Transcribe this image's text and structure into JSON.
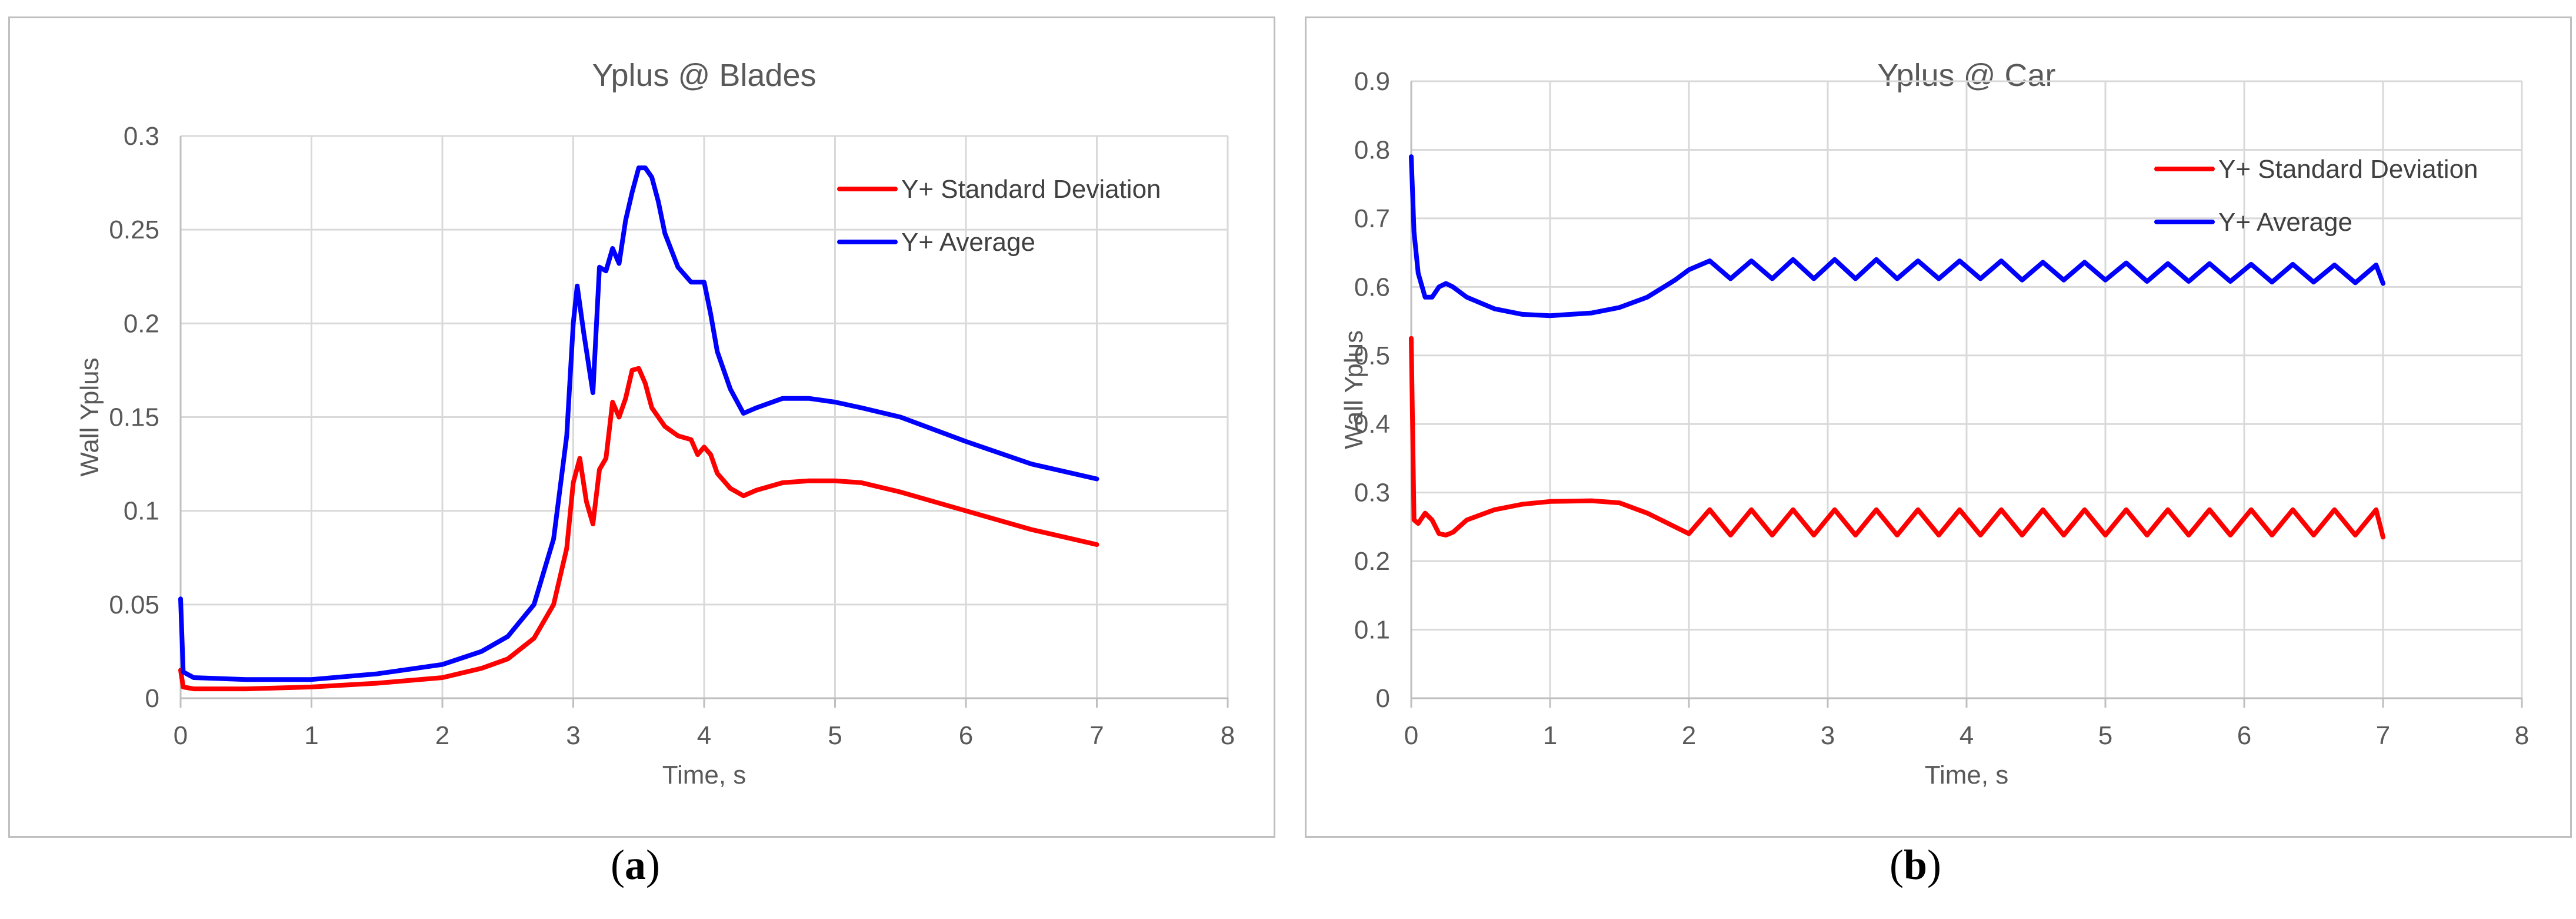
{
  "captions": {
    "a": "a",
    "b": "b"
  },
  "colors": {
    "std": "#ff0000",
    "avg": "#0000ff",
    "grid": "#d9d9d9",
    "axis": "#bfbfbf",
    "text": "#595959"
  },
  "chart_data": [
    {
      "id": "a",
      "type": "line",
      "title": "Yplus @ Blades",
      "xlabel": "Time, s",
      "ylabel": "Wall Yplus",
      "xlim": [
        0,
        8
      ],
      "ylim": [
        0,
        0.3
      ],
      "xticks": [
        0,
        1,
        2,
        3,
        4,
        5,
        6,
        7,
        8
      ],
      "xtick_labels": [
        "0",
        "1",
        "2",
        "3",
        "4",
        "5",
        "6",
        "7",
        "8"
      ],
      "yticks": [
        0,
        0.05,
        0.1,
        0.15,
        0.2,
        0.25,
        0.3
      ],
      "ytick_labels": [
        "0",
        "0.05",
        "0.1",
        "0.15",
        "0.2",
        "0.25",
        "0.3"
      ],
      "legend_position": "top-right",
      "series": [
        {
          "name": "Y+ Standard Deviation",
          "color": "#ff0000",
          "x": [
            0,
            0.02,
            0.1,
            0.5,
            1.0,
            1.5,
            2.0,
            2.3,
            2.5,
            2.7,
            2.85,
            2.95,
            3.0,
            3.05,
            3.1,
            3.15,
            3.2,
            3.25,
            3.3,
            3.35,
            3.4,
            3.45,
            3.5,
            3.55,
            3.6,
            3.65,
            3.7,
            3.8,
            3.9,
            3.95,
            4.0,
            4.05,
            4.1,
            4.2,
            4.3,
            4.4,
            4.6,
            4.8,
            5.0,
            5.2,
            5.5,
            6.0,
            6.5,
            7.0
          ],
          "values": [
            0.015,
            0.006,
            0.005,
            0.005,
            0.006,
            0.008,
            0.011,
            0.016,
            0.021,
            0.032,
            0.05,
            0.08,
            0.115,
            0.128,
            0.105,
            0.093,
            0.122,
            0.128,
            0.158,
            0.15,
            0.16,
            0.175,
            0.176,
            0.168,
            0.155,
            0.15,
            0.145,
            0.14,
            0.138,
            0.13,
            0.134,
            0.13,
            0.12,
            0.112,
            0.108,
            0.111,
            0.115,
            0.116,
            0.116,
            0.115,
            0.11,
            0.1,
            0.09,
            0.082
          ]
        },
        {
          "name": "Y+ Average",
          "color": "#0000ff",
          "x": [
            0,
            0.02,
            0.1,
            0.5,
            1.0,
            1.5,
            2.0,
            2.3,
            2.5,
            2.7,
            2.85,
            2.95,
            3.0,
            3.03,
            3.08,
            3.15,
            3.2,
            3.25,
            3.3,
            3.35,
            3.4,
            3.45,
            3.5,
            3.55,
            3.6,
            3.65,
            3.7,
            3.8,
            3.9,
            3.95,
            4.0,
            4.05,
            4.1,
            4.2,
            4.3,
            4.4,
            4.6,
            4.8,
            5.0,
            5.2,
            5.5,
            6.0,
            6.5,
            7.0
          ],
          "values": [
            0.053,
            0.014,
            0.011,
            0.01,
            0.01,
            0.013,
            0.018,
            0.025,
            0.033,
            0.05,
            0.085,
            0.14,
            0.2,
            0.22,
            0.195,
            0.163,
            0.23,
            0.228,
            0.24,
            0.232,
            0.255,
            0.27,
            0.283,
            0.283,
            0.278,
            0.265,
            0.248,
            0.23,
            0.222,
            0.222,
            0.222,
            0.205,
            0.185,
            0.165,
            0.152,
            0.155,
            0.16,
            0.16,
            0.158,
            0.155,
            0.15,
            0.137,
            0.125,
            0.117
          ]
        }
      ]
    },
    {
      "id": "b",
      "type": "line",
      "title": "Yplus @ Car",
      "xlabel": "Time, s",
      "ylabel": "Wall Yplus",
      "xlim": [
        0,
        8
      ],
      "ylim": [
        0,
        0.9
      ],
      "xticks": [
        0,
        1,
        2,
        3,
        4,
        5,
        6,
        7,
        8
      ],
      "xtick_labels": [
        "0",
        "1",
        "2",
        "3",
        "4",
        "5",
        "6",
        "7",
        "8"
      ],
      "yticks": [
        0,
        0.1,
        0.2,
        0.3,
        0.4,
        0.5,
        0.6,
        0.7,
        0.8,
        0.9
      ],
      "ytick_labels": [
        "0",
        "0.1",
        "0.2",
        "0.3",
        "0.4",
        "0.5",
        "0.6",
        "0.7",
        "0.8",
        "0.9"
      ],
      "legend_position": "top-right",
      "series": [
        {
          "name": "Y+ Standard Deviation",
          "color": "#ff0000",
          "x": [
            0,
            0.02,
            0.05,
            0.1,
            0.15,
            0.2,
            0.25,
            0.3,
            0.4,
            0.6,
            0.8,
            1.0,
            1.3,
            1.5,
            1.7,
            1.9,
            2.0,
            2.15,
            2.3,
            2.45,
            2.6,
            2.75,
            2.9,
            3.05,
            3.2,
            3.35,
            3.5,
            3.65,
            3.8,
            3.95,
            4.1,
            4.25,
            4.4,
            4.55,
            4.7,
            4.85,
            5.0,
            5.15,
            5.3,
            5.45,
            5.6,
            5.75,
            5.9,
            6.05,
            6.2,
            6.35,
            6.5,
            6.65,
            6.8,
            6.95,
            7.0
          ],
          "values": [
            0.525,
            0.26,
            0.255,
            0.27,
            0.26,
            0.24,
            0.238,
            0.242,
            0.26,
            0.275,
            0.283,
            0.287,
            0.288,
            0.285,
            0.27,
            0.25,
            0.24,
            0.275,
            0.238,
            0.275,
            0.238,
            0.275,
            0.238,
            0.275,
            0.238,
            0.275,
            0.238,
            0.275,
            0.238,
            0.275,
            0.238,
            0.275,
            0.238,
            0.275,
            0.238,
            0.275,
            0.238,
            0.275,
            0.238,
            0.275,
            0.238,
            0.275,
            0.238,
            0.275,
            0.238,
            0.275,
            0.238,
            0.275,
            0.238,
            0.275,
            0.235
          ]
        },
        {
          "name": "Y+ Average",
          "color": "#0000ff",
          "x": [
            0,
            0.02,
            0.05,
            0.1,
            0.15,
            0.2,
            0.25,
            0.3,
            0.4,
            0.6,
            0.8,
            1.0,
            1.3,
            1.5,
            1.7,
            1.9,
            2.0,
            2.15,
            2.3,
            2.45,
            2.6,
            2.75,
            2.9,
            3.05,
            3.2,
            3.35,
            3.5,
            3.65,
            3.8,
            3.95,
            4.1,
            4.25,
            4.4,
            4.55,
            4.7,
            4.85,
            5.0,
            5.15,
            5.3,
            5.45,
            5.6,
            5.75,
            5.9,
            6.05,
            6.2,
            6.35,
            6.5,
            6.65,
            6.8,
            6.95,
            7.0
          ],
          "values": [
            0.79,
            0.68,
            0.62,
            0.585,
            0.585,
            0.6,
            0.605,
            0.6,
            0.585,
            0.568,
            0.56,
            0.558,
            0.562,
            0.57,
            0.585,
            0.61,
            0.625,
            0.638,
            0.612,
            0.638,
            0.612,
            0.64,
            0.612,
            0.64,
            0.612,
            0.64,
            0.612,
            0.638,
            0.612,
            0.638,
            0.612,
            0.638,
            0.61,
            0.636,
            0.61,
            0.636,
            0.61,
            0.635,
            0.608,
            0.634,
            0.608,
            0.634,
            0.608,
            0.633,
            0.607,
            0.633,
            0.607,
            0.632,
            0.606,
            0.632,
            0.605
          ]
        }
      ]
    }
  ]
}
